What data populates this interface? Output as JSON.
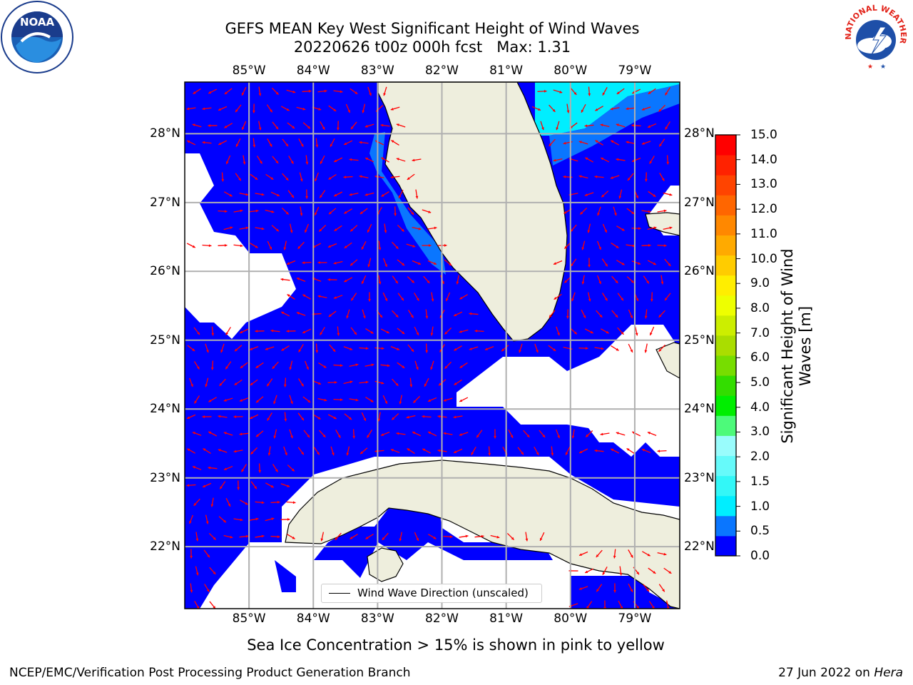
{
  "title": {
    "line1": "GEFS MEAN Key West Significant Height of Wind Waves",
    "line2": "20220626 t00z 000h fcst   Max: 1.31"
  },
  "logos": {
    "left": {
      "icon": "noaa-logo",
      "text": "NOAA"
    },
    "right": {
      "icon": "nws-logo",
      "text": "NATIONAL WEATHER SERVICE"
    }
  },
  "map": {
    "lon_labels": [
      "85°W",
      "84°W",
      "83°W",
      "82°W",
      "81°W",
      "80°W",
      "79°W"
    ],
    "lat_labels": [
      "28°N",
      "27°N",
      "26°N",
      "25°N",
      "24°N",
      "23°N",
      "22°N"
    ],
    "lon_range": [
      -86.0,
      -78.3
    ],
    "lat_range": [
      21.1,
      28.75
    ],
    "gridlines": true,
    "ocean_color": "#0000ff",
    "land_color": "#eeeedd",
    "arrow_color": "#ff0000",
    "max_value": 1.31
  },
  "colorbar": {
    "label": "Significant Height of Wind Waves [m]",
    "ticks": [
      "0.0",
      "0.5",
      "1.0",
      "1.5",
      "2.0",
      "3.0",
      "4.0",
      "5.0",
      "6.0",
      "7.0",
      "8.0",
      "9.0",
      "10.0",
      "11.0",
      "12.0",
      "13.0",
      "14.0",
      "15.0"
    ],
    "colors": [
      "#0000ff",
      "#0a76ff",
      "#00eeff",
      "#33f7f7",
      "#66fafa",
      "#99fcfc",
      "#4dfa7a",
      "#00ee00",
      "#33dd00",
      "#77dd00",
      "#aadd00",
      "#ccee00",
      "#eeff00",
      "#ffee00",
      "#ffcc00",
      "#ffaa00",
      "#ff8800",
      "#ff6600",
      "#ff4400",
      "#ff2200",
      "#ff0000"
    ]
  },
  "legend": {
    "label": "Wind Wave Direction (unscaled)"
  },
  "ice_note": "Sea Ice Concentration > 15% is shown in pink to yellow",
  "footer": {
    "left": "NCEP/EMC/Verification Post Processing Product Generation Branch",
    "right_date": "27 Jun 2022 on ",
    "right_host": "Hera"
  }
}
